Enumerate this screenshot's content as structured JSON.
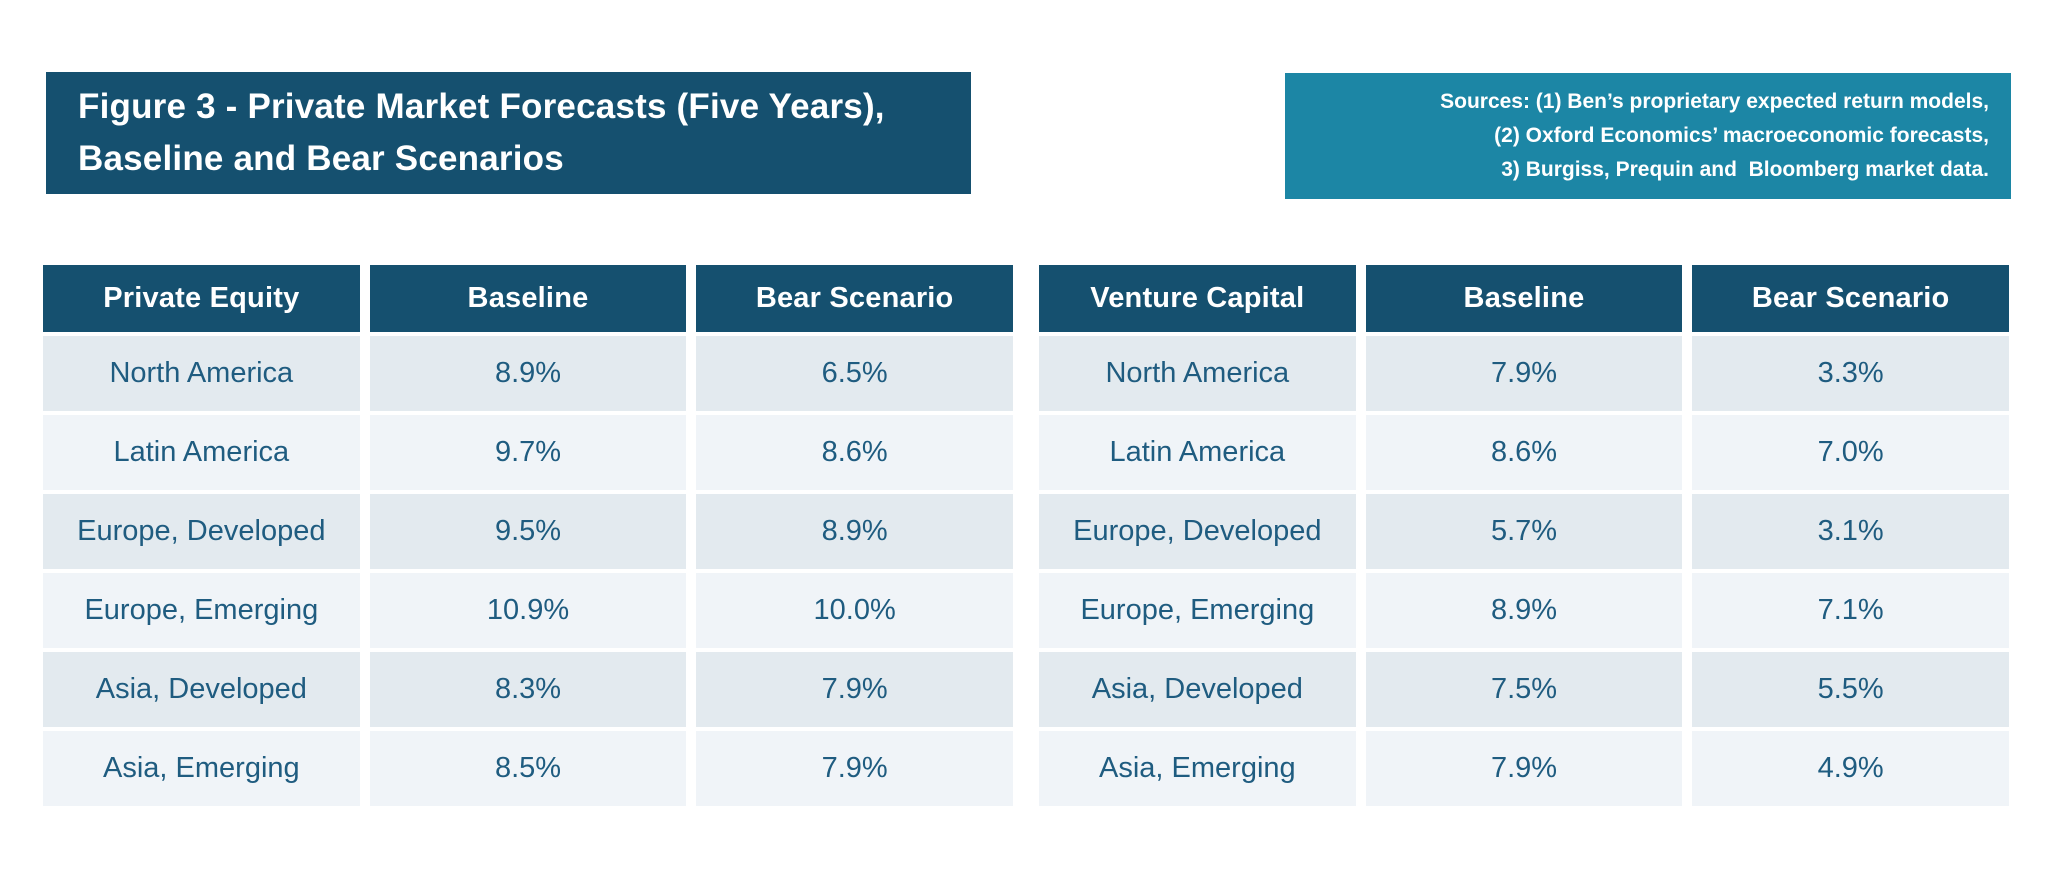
{
  "header": {
    "title_lines": [
      "Figure 3 - Private Market Forecasts (Five Years),",
      "Baseline and Bear Scenarios"
    ]
  },
  "sources": {
    "lines": [
      "Sources: (1) Ben’s proprietary expected return models,",
      "(2) Oxford Economics’ macroeconomic forecasts,",
      "3) Burgiss, Prequin and  Bloomberg market data."
    ]
  },
  "colors": {
    "title_bg": "#15506F",
    "sources_bg": "#1C86A5",
    "header_bg": "#15506F",
    "row_odd_bg": "#E3EAEF",
    "row_even_bg": "#F0F4F8",
    "cell_text": "#1F5C80",
    "header_text": "#FFFFFF"
  },
  "chart_data": [
    {
      "type": "table",
      "title": "Private Equity",
      "columns": [
        "Private Equity",
        "Baseline",
        "Bear Scenario"
      ],
      "rows": [
        [
          "North America",
          "8.9%",
          "6.5%"
        ],
        [
          "Latin America",
          "9.7%",
          "8.6%"
        ],
        [
          "Europe, Developed",
          "9.5%",
          "8.9%"
        ],
        [
          "Europe, Emerging",
          "10.9%",
          "10.0%"
        ],
        [
          "Asia, Developed",
          "8.3%",
          "7.9%"
        ],
        [
          "Asia, Emerging",
          "8.5%",
          "7.9%"
        ]
      ]
    },
    {
      "type": "table",
      "title": "Venture Capital",
      "columns": [
        "Venture Capital",
        "Baseline",
        "Bear Scenario"
      ],
      "rows": [
        [
          "North America",
          "7.9%",
          "3.3%"
        ],
        [
          "Latin America",
          "8.6%",
          "7.0%"
        ],
        [
          "Europe, Developed",
          "5.7%",
          "3.1%"
        ],
        [
          "Europe, Emerging",
          "8.9%",
          "7.1%"
        ],
        [
          "Asia, Developed",
          "7.5%",
          "5.5%"
        ],
        [
          "Asia, Emerging",
          "7.9%",
          "4.9%"
        ]
      ]
    }
  ]
}
